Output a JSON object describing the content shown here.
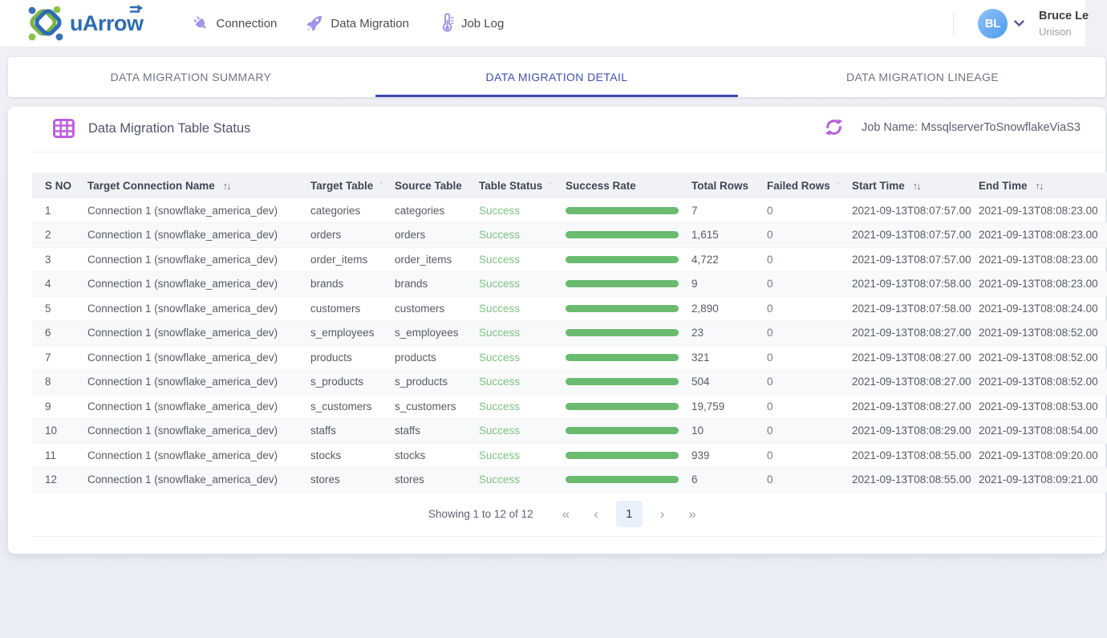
{
  "header": {
    "logo_text": "uArrow",
    "nav": [
      {
        "label": "Connection",
        "icon": "plug-icon"
      },
      {
        "label": "Data Migration",
        "icon": "rocket-icon"
      },
      {
        "label": "Job Log",
        "icon": "thermometer-icon"
      }
    ],
    "user": {
      "initials": "BL",
      "name": "Bruce Le",
      "org": "Unison"
    }
  },
  "tabs": [
    {
      "label": "DATA MIGRATION SUMMARY",
      "active": false
    },
    {
      "label": "DATA MIGRATION DETAIL",
      "active": true
    },
    {
      "label": "DATA MIGRATION LINEAGE",
      "active": false
    }
  ],
  "panel": {
    "title": "Data Migration Table Status",
    "job_label": "Job Name: MssqlserverToSnowflakeViaS3"
  },
  "icons": {
    "sort_arrows": "↑↓",
    "sort_mini": "ˊ"
  },
  "table": {
    "columns": [
      {
        "label": "S NO",
        "sort": null
      },
      {
        "label": "Target Connection Name",
        "sort": "arrows"
      },
      {
        "label": "Target Table",
        "sort": "mini"
      },
      {
        "label": "Source Table",
        "sort": null
      },
      {
        "label": "Table Status",
        "sort": "mini"
      },
      {
        "label": "Success Rate",
        "sort": null
      },
      {
        "label": "Total Rows",
        "sort": null
      },
      {
        "label": "Failed Rows",
        "sort": "mini"
      },
      {
        "label": "Start Time",
        "sort": "arrows"
      },
      {
        "label": "End Time",
        "sort": "arrows"
      }
    ],
    "rows": [
      {
        "s_no": "1",
        "connection": "Connection 1 (snowflake_america_dev)",
        "target_table": "categories",
        "source_table": "categories",
        "status": "Success",
        "success_rate_percent": 100,
        "total_rows": "7",
        "failed_rows": "0",
        "start_time": "2021-09-13T08:07:57.00",
        "end_time": "2021-09-13T08:08:23.00"
      },
      {
        "s_no": "2",
        "connection": "Connection 1 (snowflake_america_dev)",
        "target_table": "orders",
        "source_table": "orders",
        "status": "Success",
        "success_rate_percent": 100,
        "total_rows": "1,615",
        "failed_rows": "0",
        "start_time": "2021-09-13T08:07:57.00",
        "end_time": "2021-09-13T08:08:23.00"
      },
      {
        "s_no": "3",
        "connection": "Connection 1 (snowflake_america_dev)",
        "target_table": "order_items",
        "source_table": "order_items",
        "status": "Success",
        "success_rate_percent": 100,
        "total_rows": "4,722",
        "failed_rows": "0",
        "start_time": "2021-09-13T08:07:57.00",
        "end_time": "2021-09-13T08:08:23.00"
      },
      {
        "s_no": "4",
        "connection": "Connection 1 (snowflake_america_dev)",
        "target_table": "brands",
        "source_table": "brands",
        "status": "Success",
        "success_rate_percent": 100,
        "total_rows": "9",
        "failed_rows": "0",
        "start_time": "2021-09-13T08:07:58.00",
        "end_time": "2021-09-13T08:08:23.00"
      },
      {
        "s_no": "5",
        "connection": "Connection 1 (snowflake_america_dev)",
        "target_table": "customers",
        "source_table": "customers",
        "status": "Success",
        "success_rate_percent": 100,
        "total_rows": "2,890",
        "failed_rows": "0",
        "start_time": "2021-09-13T08:07:58.00",
        "end_time": "2021-09-13T08:08:24.00"
      },
      {
        "s_no": "6",
        "connection": "Connection 1 (snowflake_america_dev)",
        "target_table": "s_employees",
        "source_table": "s_employees",
        "status": "Success",
        "success_rate_percent": 100,
        "total_rows": "23",
        "failed_rows": "0",
        "start_time": "2021-09-13T08:08:27.00",
        "end_time": "2021-09-13T08:08:52.00"
      },
      {
        "s_no": "7",
        "connection": "Connection 1 (snowflake_america_dev)",
        "target_table": "products",
        "source_table": "products",
        "status": "Success",
        "success_rate_percent": 100,
        "total_rows": "321",
        "failed_rows": "0",
        "start_time": "2021-09-13T08:08:27.00",
        "end_time": "2021-09-13T08:08:52.00"
      },
      {
        "s_no": "8",
        "connection": "Connection 1 (snowflake_america_dev)",
        "target_table": "s_products",
        "source_table": "s_products",
        "status": "Success",
        "success_rate_percent": 100,
        "total_rows": "504",
        "failed_rows": "0",
        "start_time": "2021-09-13T08:08:27.00",
        "end_time": "2021-09-13T08:08:52.00"
      },
      {
        "s_no": "9",
        "connection": "Connection 1 (snowflake_america_dev)",
        "target_table": "s_customers",
        "source_table": "s_customers",
        "status": "Success",
        "success_rate_percent": 100,
        "total_rows": "19,759",
        "failed_rows": "0",
        "start_time": "2021-09-13T08:08:27.00",
        "end_time": "2021-09-13T08:08:53.00"
      },
      {
        "s_no": "10",
        "connection": "Connection 1 (snowflake_america_dev)",
        "target_table": "staffs",
        "source_table": "staffs",
        "status": "Success",
        "success_rate_percent": 100,
        "total_rows": "10",
        "failed_rows": "0",
        "start_time": "2021-09-13T08:08:29.00",
        "end_time": "2021-09-13T08:08:54.00"
      },
      {
        "s_no": "11",
        "connection": "Connection 1 (snowflake_america_dev)",
        "target_table": "stocks",
        "source_table": "stocks",
        "status": "Success",
        "success_rate_percent": 100,
        "total_rows": "939",
        "failed_rows": "0",
        "start_time": "2021-09-13T08:08:55.00",
        "end_time": "2021-09-13T08:09:20.00"
      },
      {
        "s_no": "12",
        "connection": "Connection 1 (snowflake_america_dev)",
        "target_table": "stores",
        "source_table": "stores",
        "status": "Success",
        "success_rate_percent": 100,
        "total_rows": "6",
        "failed_rows": "0",
        "start_time": "2021-09-13T08:08:55.00",
        "end_time": "2021-09-13T08:09:21.00"
      }
    ]
  },
  "pagination": {
    "summary": "Showing 1 to 12 of 12",
    "page": "1",
    "first_icon": "«",
    "prev_icon": "‹",
    "next_icon": "›",
    "last_icon": "»"
  },
  "colors": {
    "accent_purple": "#9d97e8",
    "orchid": "#c05fe0",
    "active_tab_blue": "#3f51b5",
    "success_green": "#7cc27f",
    "bar_green": "#6abb6f",
    "avatar_blue": "#4e9bef",
    "logo_blue": "#2e6cb4",
    "logo_green": "#7ab648"
  }
}
